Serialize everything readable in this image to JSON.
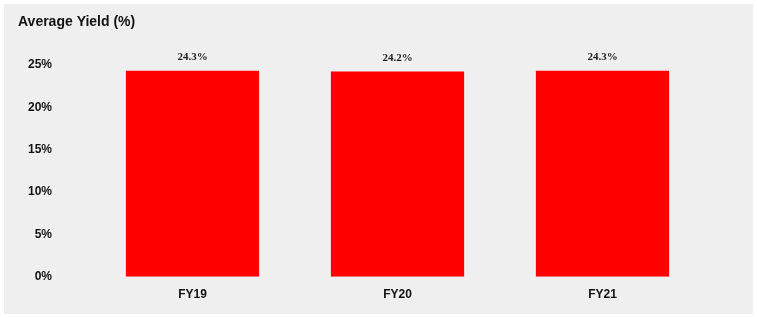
{
  "chart_data": {
    "type": "bar",
    "title": "Average Yield (%)",
    "categories": [
      "FY19",
      "FY20",
      "FY21"
    ],
    "values": [
      24.3,
      24.2,
      24.3
    ],
    "value_labels": [
      "24.3%",
      "24.2%",
      "24.3%"
    ],
    "color": "#ff0000",
    "ylim": [
      0,
      25
    ],
    "yticks": [
      {
        "value": 0,
        "label": "0%"
      },
      {
        "value": 5,
        "label": "5%"
      },
      {
        "value": 10,
        "label": "10%"
      },
      {
        "value": 15,
        "label": "15%"
      },
      {
        "value": 20,
        "label": "20%"
      },
      {
        "value": 25,
        "label": "25%"
      }
    ],
    "grid": false,
    "data_labels": true
  }
}
